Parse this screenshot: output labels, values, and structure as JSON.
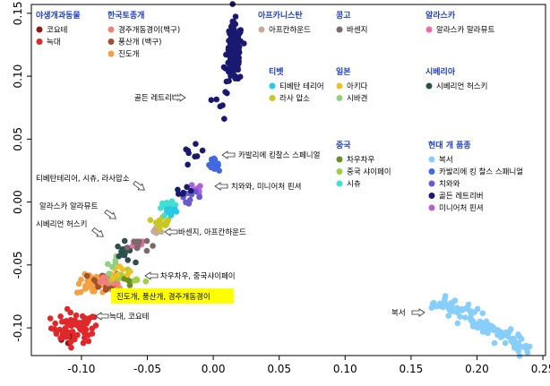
{
  "chart_data": {
    "type": "scatter",
    "title": "",
    "xlabel": "",
    "ylabel": "",
    "xlim": [
      -0.138,
      0.252
    ],
    "ylim": [
      -0.122,
      0.157
    ],
    "x_ticks": [
      {
        "value": -0.1,
        "label": "-0.10"
      },
      {
        "value": -0.05,
        "label": "-0.05"
      },
      {
        "value": 0.0,
        "label": "0.00"
      },
      {
        "value": 0.05,
        "label": "0.05"
      },
      {
        "value": 0.1,
        "label": "0.10"
      },
      {
        "value": 0.15,
        "label": "0.15"
      },
      {
        "value": 0.2,
        "label": "0.20"
      },
      {
        "value": 0.25,
        "label": "0.25"
      }
    ],
    "y_ticks": [
      {
        "value": -0.1,
        "label": "-0.10"
      },
      {
        "value": -0.05,
        "label": "-0.05"
      },
      {
        "value": 0.0,
        "label": "0.00"
      },
      {
        "value": 0.05,
        "label": "0.05"
      },
      {
        "value": 0.1,
        "label": "0.10"
      },
      {
        "value": 0.15,
        "label": "0.15"
      }
    ],
    "grid": false,
    "legend_groups": [
      {
        "title": "야생개과동물",
        "items": [
          {
            "name": "코요테",
            "color": "#8b1a1a"
          },
          {
            "name": "늑대",
            "color": "#e0282b"
          }
        ]
      },
      {
        "title": "한국토종개",
        "items": [
          {
            "name": "경주개동경이(백구)",
            "color": "#f08080"
          },
          {
            "name": "풍산개 (백구)",
            "color": "#a0522d"
          },
          {
            "name": "진도개",
            "color": "#f4a040"
          }
        ]
      },
      {
        "title": "아프카니스탄",
        "items": [
          {
            "name": "아프칸하운드",
            "color": "#c8a99a"
          }
        ]
      },
      {
        "title": "콩고",
        "items": [
          {
            "name": "바센지",
            "color": "#7b6a6a"
          }
        ]
      },
      {
        "title": "알라스카",
        "items": [
          {
            "name": "알라스카 말라뮤트",
            "color": "#f06aa8"
          }
        ]
      },
      {
        "title": "티벳",
        "items": [
          {
            "name": "티베탄 테리어",
            "color": "#28c8e8"
          },
          {
            "name": "라사 압소",
            "color": "#c8c820"
          }
        ]
      },
      {
        "title": "일본",
        "items": [
          {
            "name": "아키다",
            "color": "#f0c020"
          },
          {
            "name": "시바견",
            "color": "#90d080"
          }
        ]
      },
      {
        "title": "시베리아",
        "items": [
          {
            "name": "시베리언 허스키",
            "color": "#2f4f4f"
          }
        ]
      },
      {
        "title": "중국",
        "items": [
          {
            "name": "차우차우",
            "color": "#6b8e23"
          },
          {
            "name": "중국 샤이페이",
            "color": "#a0d040"
          },
          {
            "name": "시츄",
            "color": "#40e0d0"
          }
        ]
      },
      {
        "title": "현대 개 품종",
        "items": [
          {
            "name": "복서",
            "color": "#87cefa"
          },
          {
            "name": "카발리에 킹 찰스 스패니얼",
            "color": "#4169e1"
          },
          {
            "name": "치와와",
            "color": "#6a5acd"
          },
          {
            "name": "골든 레트리버",
            "color": "#191970"
          },
          {
            "name": "미니어처 핀셔",
            "color": "#b060d8"
          }
        ]
      }
    ],
    "series": [
      {
        "name": "코요테",
        "color": "#8b1a1a",
        "clusters": [
          {
            "cx": -0.107,
            "cy": -0.108,
            "sx": 0.004,
            "sy": 0.003,
            "n": 10
          }
        ]
      },
      {
        "name": "늑대",
        "color": "#e0282b",
        "clusters": [
          {
            "cx": -0.105,
            "cy": -0.1,
            "sx": 0.009,
            "sy": 0.006,
            "n": 65
          }
        ]
      },
      {
        "name": "진도개",
        "color": "#f4a040",
        "clusters": [
          {
            "cx": -0.088,
            "cy": -0.066,
            "sx": 0.008,
            "sy": 0.004,
            "n": 45
          }
        ]
      },
      {
        "name": "풍산개 (백구)",
        "color": "#a0522d",
        "clusters": [
          {
            "cx": -0.082,
            "cy": -0.063,
            "sx": 0.006,
            "sy": 0.004,
            "n": 25
          }
        ]
      },
      {
        "name": "경주개동경이(백구)",
        "color": "#f08080",
        "clusters": [
          {
            "cx": -0.075,
            "cy": -0.061,
            "sx": 0.005,
            "sy": 0.003,
            "n": 18
          }
        ]
      },
      {
        "name": "중국 샤이페이",
        "color": "#a0d040",
        "clusters": [
          {
            "cx": -0.072,
            "cy": -0.058,
            "sx": 0.005,
            "sy": 0.003,
            "n": 8
          },
          {
            "cx": -0.058,
            "cy": -0.063,
            "sx": 0.004,
            "sy": 0.002,
            "n": 4
          }
        ]
      },
      {
        "name": "차우차우",
        "color": "#6b8e23",
        "clusters": [
          {
            "cx": -0.066,
            "cy": -0.062,
            "sx": 0.003,
            "sy": 0.002,
            "n": 6
          }
        ]
      },
      {
        "name": "아키다",
        "color": "#f0c020",
        "clusters": [
          {
            "cx": -0.072,
            "cy": -0.054,
            "sx": 0.004,
            "sy": 0.003,
            "n": 8
          }
        ]
      },
      {
        "name": "시바견",
        "color": "#90d080",
        "clusters": [
          {
            "cx": -0.076,
            "cy": -0.05,
            "sx": 0.003,
            "sy": 0.003,
            "n": 6
          }
        ]
      },
      {
        "name": "시베리언 허스키",
        "color": "#2f4f4f",
        "clusters": [
          {
            "cx": -0.067,
            "cy": -0.04,
            "sx": 0.003,
            "sy": 0.004,
            "n": 14
          }
        ]
      },
      {
        "name": "알라스카 말라뮤트",
        "color": "#f06aa8",
        "clusters": [
          {
            "cx": -0.06,
            "cy": -0.033,
            "sx": 0.003,
            "sy": 0.002,
            "n": 10
          }
        ]
      },
      {
        "name": "바센지",
        "color": "#7b6a6a",
        "clusters": [
          {
            "cx": -0.057,
            "cy": -0.034,
            "sx": 0.004,
            "sy": 0.003,
            "n": 12
          }
        ]
      },
      {
        "name": "아프칸하운드",
        "color": "#c8a99a",
        "clusters": [
          {
            "cx": -0.041,
            "cy": -0.021,
            "sx": 0.003,
            "sy": 0.003,
            "n": 10
          }
        ]
      },
      {
        "name": "라사 압소",
        "color": "#c8c820",
        "clusters": [
          {
            "cx": -0.039,
            "cy": -0.015,
            "sx": 0.003,
            "sy": 0.003,
            "n": 12
          }
        ]
      },
      {
        "name": "시츄",
        "color": "#40e0d0",
        "clusters": [
          {
            "cx": -0.034,
            "cy": -0.004,
            "sx": 0.003,
            "sy": 0.002,
            "n": 14
          }
        ]
      },
      {
        "name": "티베탄 테리어",
        "color": "#28c8e8",
        "clusters": [
          {
            "cx": -0.032,
            "cy": -0.007,
            "sx": 0.003,
            "sy": 0.003,
            "n": 10
          }
        ]
      },
      {
        "name": "미니어처 핀셔",
        "color": "#b060d8",
        "clusters": [
          {
            "cx": -0.011,
            "cy": 0.011,
            "sx": 0.003,
            "sy": 0.002,
            "n": 8
          }
        ]
      },
      {
        "name": "치와와",
        "color": "#6a5acd",
        "clusters": [
          {
            "cx": -0.017,
            "cy": 0.004,
            "sx": 0.004,
            "sy": 0.002,
            "n": 10
          }
        ]
      },
      {
        "name": "카발리에 킹 찰스 스패니얼",
        "color": "#4169e1",
        "clusters": [
          {
            "cx": 0.0,
            "cy": 0.03,
            "sx": 0.002,
            "sy": 0.002,
            "n": 22
          }
        ]
      },
      {
        "name": "골든 레트리버",
        "color": "#191970",
        "clusters": [
          {
            "cx": 0.016,
            "cy": 0.118,
            "sx": 0.003,
            "sy": 0.012,
            "n": 140
          },
          {
            "cx": -0.014,
            "cy": 0.04,
            "sx": 0.005,
            "sy": 0.006,
            "n": 8
          },
          {
            "cx": 0.007,
            "cy": 0.075,
            "sx": 0.003,
            "sy": 0.006,
            "n": 6
          },
          {
            "cx": -0.023,
            "cy": 0.012,
            "sx": 0.004,
            "sy": 0.004,
            "n": 6
          }
        ]
      },
      {
        "name": "복서",
        "color": "#87cefa",
        "clusters": [
          {
            "line": [
              0.168,
              -0.078,
              0.239,
              -0.117
            ],
            "spread": 0.0035,
            "n": 110
          }
        ]
      }
    ],
    "annotations": [
      {
        "text": "골든 레트리버",
        "highlight": false
      },
      {
        "text": "카발리에 킹찰스 스페니얼",
        "highlight": false
      },
      {
        "text": "치와와, 미니어처 핀셔",
        "highlight": false
      },
      {
        "text": "티베탄테리어, 시츄, 라사압소",
        "highlight": false
      },
      {
        "text": "알라스카 알라뮤트",
        "highlight": false
      },
      {
        "text": "시베리언 허스키",
        "highlight": false
      },
      {
        "text": "바센지, 아프칸하운드",
        "highlight": false
      },
      {
        "text": "차우차우, 중국샤이페이",
        "highlight": false
      },
      {
        "text": "진도개, 풍산개, 경주개동경이",
        "highlight": true
      },
      {
        "text": "늑대, 코요테",
        "highlight": false
      },
      {
        "text": "복서",
        "highlight": false
      }
    ],
    "colors": {
      "legend_title": "#1f3fbf",
      "highlight": "#ffff00"
    }
  }
}
